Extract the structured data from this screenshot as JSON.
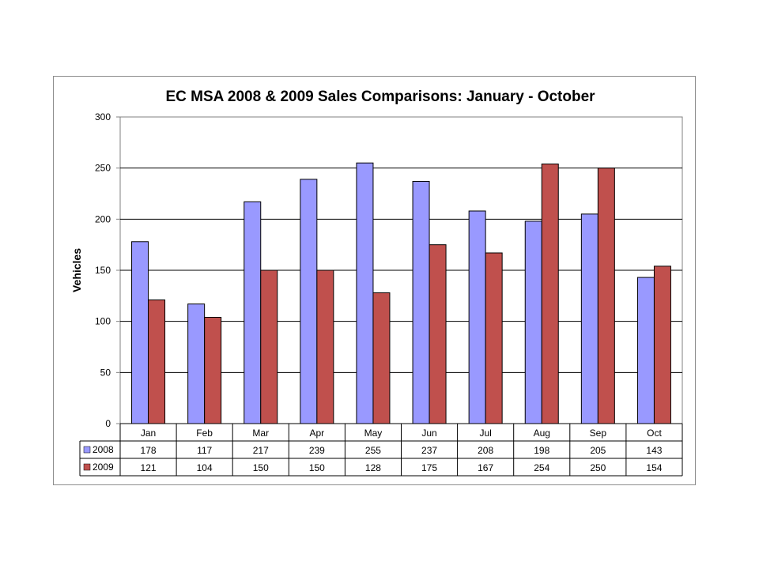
{
  "chart_data": {
    "type": "bar",
    "title": "EC MSA 2008 & 2009 Sales Comparisons: January - October",
    "xlabel": "",
    "ylabel": "Vehicles",
    "ylim": [
      0,
      300
    ],
    "yticks": [
      0,
      50,
      100,
      150,
      200,
      250,
      300
    ],
    "grid": true,
    "legend": "data-table",
    "categories": [
      "Jan",
      "Feb",
      "Mar",
      "Apr",
      "May",
      "Jun",
      "Jul",
      "Aug",
      "Sep",
      "Oct"
    ],
    "series": [
      {
        "name": "2008",
        "color": "#9999ff",
        "values": [
          178,
          117,
          217,
          239,
          255,
          237,
          208,
          198,
          205,
          143
        ]
      },
      {
        "name": "2009",
        "color": "#c0504d",
        "values": [
          121,
          104,
          150,
          150,
          128,
          175,
          167,
          254,
          250,
          154
        ]
      }
    ]
  }
}
